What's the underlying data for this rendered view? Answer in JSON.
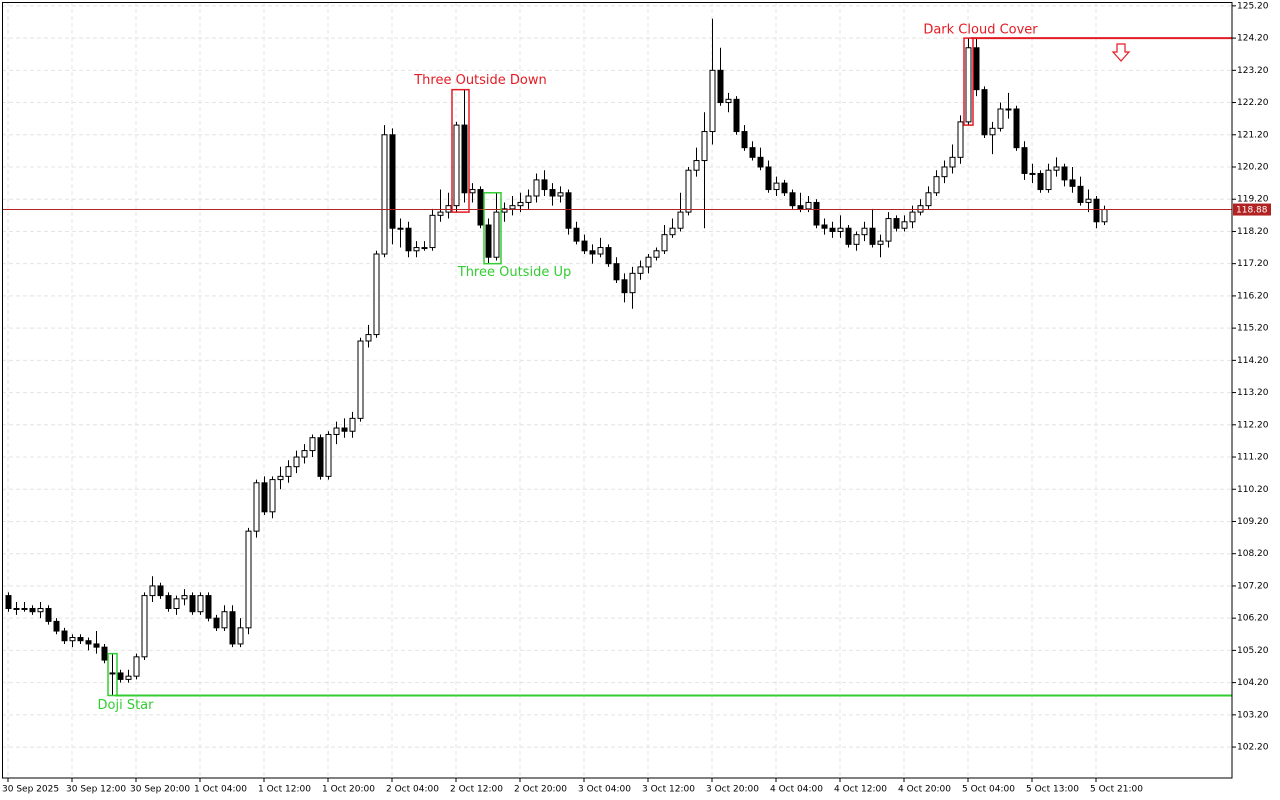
{
  "chart_data": {
    "type": "candlestick",
    "categories": [
      "30 Sep 2025",
      null,
      null,
      null,
      null,
      null,
      null,
      null,
      "30 Sep 12:00",
      null,
      null,
      null,
      null,
      null,
      null,
      null,
      "30 Sep 20:00",
      null,
      null,
      null,
      null,
      null,
      null,
      null,
      "1 Oct 04:00",
      null,
      null,
      null,
      null,
      null,
      null,
      null,
      "1 Oct 12:00",
      null,
      null,
      null,
      null,
      null,
      null,
      null,
      "1 Oct 20:00",
      null,
      null,
      null,
      null,
      null,
      null,
      null,
      "2 Oct 04:00",
      null,
      null,
      null,
      null,
      null,
      null,
      null,
      "2 Oct 12:00",
      null,
      null,
      null,
      null,
      null,
      null,
      null,
      "2 Oct 20:00",
      null,
      null,
      null,
      null,
      null,
      null,
      null,
      "3 Oct 04:00",
      null,
      null,
      null,
      null,
      null,
      null,
      null,
      "3 Oct 12:00",
      null,
      null,
      null,
      null,
      null,
      null,
      null,
      "3 Oct 20:00",
      null,
      null,
      null,
      null,
      null,
      null,
      null,
      "4 Oct 04:00",
      null,
      null,
      null,
      null,
      null,
      null,
      null,
      "4 Oct 12:00",
      null,
      null,
      null,
      null,
      null,
      null,
      null,
      "4 Oct 20:00",
      null,
      null,
      null,
      null,
      null,
      null,
      null,
      "5 Oct 04:00",
      null,
      null,
      null,
      null,
      null,
      null,
      null,
      "5 Oct 13:00",
      null,
      null,
      null,
      null,
      null,
      null,
      null,
      "5 Oct 21:00",
      null
    ],
    "ohlc": [
      [
        106.9,
        107.0,
        106.4,
        106.5
      ],
      [
        106.5,
        106.7,
        106.3,
        106.5
      ],
      [
        106.5,
        106.7,
        106.4,
        106.5
      ],
      [
        106.5,
        106.6,
        106.3,
        106.4
      ],
      [
        106.4,
        106.7,
        106.2,
        106.5
      ],
      [
        106.5,
        106.6,
        106.0,
        106.1
      ],
      [
        106.1,
        106.2,
        105.7,
        105.8
      ],
      [
        105.8,
        105.9,
        105.4,
        105.5
      ],
      [
        105.5,
        105.7,
        105.3,
        105.6
      ],
      [
        105.6,
        105.7,
        105.4,
        105.5
      ],
      [
        105.5,
        105.6,
        105.2,
        105.4
      ],
      [
        105.4,
        105.8,
        105.1,
        105.3
      ],
      [
        105.3,
        105.4,
        104.8,
        104.9
      ],
      [
        104.5,
        105.1,
        103.8,
        104.5
      ],
      [
        104.5,
        104.6,
        104.2,
        104.3
      ],
      [
        104.3,
        104.6,
        104.2,
        104.4
      ],
      [
        104.4,
        105.1,
        104.3,
        105.0
      ],
      [
        105.0,
        107.0,
        104.9,
        106.9
      ],
      [
        106.9,
        107.5,
        106.7,
        107.2
      ],
      [
        107.2,
        107.3,
        106.8,
        106.9
      ],
      [
        106.9,
        107.0,
        106.4,
        106.5
      ],
      [
        106.5,
        106.9,
        106.3,
        106.8
      ],
      [
        106.8,
        107.1,
        106.6,
        106.9
      ],
      [
        106.9,
        107.0,
        106.3,
        106.4
      ],
      [
        106.4,
        107.0,
        106.3,
        106.9
      ],
      [
        106.9,
        107.0,
        106.1,
        106.2
      ],
      [
        106.2,
        106.3,
        105.8,
        105.9
      ],
      [
        105.9,
        106.6,
        105.8,
        106.4
      ],
      [
        106.4,
        106.6,
        105.3,
        105.4
      ],
      [
        105.4,
        106.2,
        105.3,
        105.9
      ],
      [
        105.9,
        109.0,
        105.7,
        108.9
      ],
      [
        108.9,
        110.5,
        108.7,
        110.4
      ],
      [
        110.4,
        110.6,
        109.4,
        109.5
      ],
      [
        109.5,
        110.6,
        109.3,
        110.5
      ],
      [
        110.5,
        110.9,
        110.2,
        110.6
      ],
      [
        110.6,
        111.1,
        110.4,
        110.9
      ],
      [
        110.9,
        111.4,
        110.7,
        111.2
      ],
      [
        111.2,
        111.6,
        111.0,
        111.4
      ],
      [
        111.4,
        111.9,
        111.2,
        111.8
      ],
      [
        111.8,
        111.9,
        110.5,
        110.6
      ],
      [
        110.6,
        112.0,
        110.5,
        111.9
      ],
      [
        111.9,
        112.3,
        111.6,
        112.1
      ],
      [
        112.1,
        112.4,
        111.8,
        112.0
      ],
      [
        112.0,
        112.6,
        111.8,
        112.4
      ],
      [
        112.4,
        114.9,
        112.3,
        114.8
      ],
      [
        114.8,
        115.3,
        114.6,
        115.0
      ],
      [
        115.0,
        117.6,
        114.9,
        117.5
      ],
      [
        117.5,
        121.5,
        117.4,
        121.2
      ],
      [
        121.2,
        121.4,
        117.8,
        118.3
      ],
      [
        118.3,
        118.6,
        117.7,
        118.3
      ],
      [
        118.3,
        118.5,
        117.4,
        117.6
      ],
      [
        117.6,
        117.9,
        117.4,
        117.7
      ],
      [
        117.7,
        117.9,
        117.6,
        117.7
      ],
      [
        117.7,
        118.9,
        117.6,
        118.7
      ],
      [
        118.7,
        119.5,
        118.5,
        118.8
      ],
      [
        118.8,
        119.4,
        118.6,
        119.0
      ],
      [
        119.0,
        121.6,
        118.8,
        121.5
      ],
      [
        121.5,
        122.6,
        119.1,
        119.4
      ],
      [
        119.4,
        119.7,
        119.1,
        119.5
      ],
      [
        119.5,
        119.6,
        118.3,
        118.4
      ],
      [
        118.4,
        118.6,
        117.2,
        117.4
      ],
      [
        117.4,
        119.4,
        117.3,
        118.8
      ],
      [
        118.8,
        119.1,
        118.5,
        118.9
      ],
      [
        118.9,
        119.3,
        118.7,
        119.0
      ],
      [
        119.0,
        119.4,
        118.8,
        119.1
      ],
      [
        119.1,
        119.5,
        118.9,
        119.3
      ],
      [
        119.3,
        120.0,
        119.1,
        119.8
      ],
      [
        119.8,
        120.1,
        119.3,
        119.5
      ],
      [
        119.5,
        119.7,
        119.0,
        119.3
      ],
      [
        119.3,
        119.6,
        119.1,
        119.4
      ],
      [
        119.4,
        119.5,
        118.1,
        118.3
      ],
      [
        118.3,
        118.5,
        117.8,
        117.9
      ],
      [
        117.9,
        118.1,
        117.5,
        117.6
      ],
      [
        117.6,
        117.8,
        117.2,
        117.5
      ],
      [
        117.5,
        118.0,
        117.4,
        117.7
      ],
      [
        117.7,
        117.8,
        117.1,
        117.2
      ],
      [
        117.2,
        117.4,
        116.6,
        116.7
      ],
      [
        116.7,
        116.9,
        116.0,
        116.3
      ],
      [
        116.3,
        117.1,
        115.8,
        116.9
      ],
      [
        116.9,
        117.3,
        116.7,
        117.1
      ],
      [
        117.1,
        117.5,
        116.9,
        117.4
      ],
      [
        117.4,
        117.7,
        117.3,
        117.6
      ],
      [
        117.6,
        118.4,
        117.5,
        118.1
      ],
      [
        118.1,
        118.6,
        118.0,
        118.3
      ],
      [
        118.3,
        119.4,
        118.2,
        118.8
      ],
      [
        118.8,
        120.2,
        118.7,
        120.1
      ],
      [
        120.1,
        120.8,
        119.9,
        120.4
      ],
      [
        120.4,
        121.9,
        118.3,
        121.3
      ],
      [
        121.3,
        124.8,
        120.9,
        123.2
      ],
      [
        123.2,
        123.9,
        122.1,
        122.2
      ],
      [
        122.2,
        122.5,
        121.9,
        122.3
      ],
      [
        122.3,
        122.4,
        121.2,
        121.3
      ],
      [
        121.3,
        121.5,
        120.7,
        120.8
      ],
      [
        120.8,
        121.0,
        120.4,
        120.5
      ],
      [
        120.5,
        120.8,
        120.1,
        120.2
      ],
      [
        120.2,
        120.4,
        119.4,
        119.5
      ],
      [
        119.5,
        119.9,
        119.3,
        119.7
      ],
      [
        119.7,
        119.8,
        119.3,
        119.4
      ],
      [
        119.4,
        119.5,
        118.9,
        119.0
      ],
      [
        119.0,
        119.4,
        118.8,
        118.9
      ],
      [
        118.9,
        119.3,
        118.8,
        119.1
      ],
      [
        119.1,
        119.2,
        118.3,
        118.4
      ],
      [
        118.4,
        118.6,
        118.1,
        118.3
      ],
      [
        118.3,
        118.5,
        118.0,
        118.2
      ],
      [
        118.2,
        118.7,
        118.0,
        118.3
      ],
      [
        118.3,
        118.4,
        117.7,
        117.8
      ],
      [
        117.8,
        118.2,
        117.6,
        118.1
      ],
      [
        118.1,
        118.5,
        117.9,
        118.3
      ],
      [
        118.3,
        118.9,
        117.7,
        117.8
      ],
      [
        117.8,
        118.1,
        117.4,
        117.9
      ],
      [
        117.9,
        118.8,
        117.7,
        118.6
      ],
      [
        118.6,
        118.7,
        118.2,
        118.3
      ],
      [
        118.3,
        118.7,
        118.2,
        118.5
      ],
      [
        118.5,
        119.0,
        118.3,
        118.8
      ],
      [
        118.8,
        119.2,
        118.7,
        119.0
      ],
      [
        119.0,
        119.6,
        118.9,
        119.4
      ],
      [
        119.4,
        120.1,
        119.3,
        119.9
      ],
      [
        119.9,
        120.4,
        119.7,
        120.2
      ],
      [
        120.2,
        120.9,
        120.0,
        120.5
      ],
      [
        120.5,
        121.8,
        120.3,
        121.6
      ],
      [
        121.6,
        124.2,
        121.5,
        123.9
      ],
      [
        123.9,
        124.2,
        122.4,
        122.6
      ],
      [
        122.6,
        122.7,
        121.1,
        121.2
      ],
      [
        121.2,
        121.6,
        120.6,
        121.4
      ],
      [
        121.4,
        122.2,
        121.3,
        122.0
      ],
      [
        122.0,
        122.5,
        121.7,
        122.0
      ],
      [
        122.0,
        122.1,
        120.7,
        120.8
      ],
      [
        120.8,
        121.0,
        119.8,
        120.0
      ],
      [
        120.0,
        120.3,
        119.7,
        120.0
      ],
      [
        120.0,
        120.1,
        119.4,
        119.5
      ],
      [
        119.5,
        120.3,
        119.4,
        120.1
      ],
      [
        120.1,
        120.5,
        119.9,
        120.2
      ],
      [
        120.2,
        120.3,
        119.6,
        119.8
      ],
      [
        119.8,
        120.2,
        119.4,
        119.6
      ],
      [
        119.6,
        119.9,
        119.0,
        119.1
      ],
      [
        119.1,
        119.5,
        118.8,
        119.2
      ],
      [
        119.2,
        119.3,
        118.3,
        118.5
      ],
      [
        118.5,
        119.0,
        118.4,
        118.88
      ]
    ],
    "up_color": "#ffffff",
    "down_color": "#000000",
    "outline_color": "#000000",
    "ylim": [
      101.24,
      125.32
    ],
    "yticks": [
      {
        "value": 102.2,
        "label": "102.20"
      },
      {
        "value": 103.2,
        "label": "103.20"
      },
      {
        "value": 104.2,
        "label": "104.20"
      },
      {
        "value": 105.2,
        "label": "105.20"
      },
      {
        "value": 106.2,
        "label": "106.20"
      },
      {
        "value": 107.2,
        "label": "107.20"
      },
      {
        "value": 108.2,
        "label": "108.20"
      },
      {
        "value": 109.2,
        "label": "109.20"
      },
      {
        "value": 110.2,
        "label": "110.20"
      },
      {
        "value": 111.2,
        "label": "111.20"
      },
      {
        "value": 112.2,
        "label": "112.20"
      },
      {
        "value": 113.2,
        "label": "113.20"
      },
      {
        "value": 114.2,
        "label": "114.20"
      },
      {
        "value": 115.2,
        "label": "115.20"
      },
      {
        "value": 116.2,
        "label": "116.20"
      },
      {
        "value": 117.2,
        "label": "117.20"
      },
      {
        "value": 118.2,
        "label": "118.20"
      },
      {
        "value": 119.2,
        "label": "119.20"
      },
      {
        "value": 120.2,
        "label": "120.20"
      },
      {
        "value": 121.2,
        "label": "121.20"
      },
      {
        "value": 122.2,
        "label": "122.20"
      },
      {
        "value": 123.2,
        "label": "123.20"
      },
      {
        "value": 124.2,
        "label": "124.20"
      },
      {
        "value": 125.2,
        "label": "125.20"
      }
    ],
    "grid": true,
    "current_price": 118.88,
    "current_price_color": "#b22222",
    "annotations": [
      {
        "text": "Three Outside Down",
        "color": "#e31b23"
      },
      {
        "text": "Three Outside Up",
        "color": "#32cd32"
      },
      {
        "text": "Doji Star",
        "color": "#32cd32"
      },
      {
        "text": "Dark Cloud Cover",
        "color": "#e31b23"
      }
    ]
  }
}
